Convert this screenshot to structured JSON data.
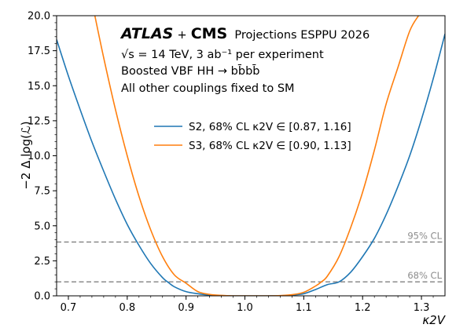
{
  "chart_data": {
    "type": "line",
    "xlabel": "κ2V",
    "ylabel": "−2 Δ log(ℒ)",
    "xlim": [
      0.68,
      1.34
    ],
    "ylim": [
      0.0,
      20.0
    ],
    "xticks": [
      "0.7",
      "0.8",
      "0.9",
      "1.0",
      "1.1",
      "1.2",
      "1.3"
    ],
    "xtick_values": [
      0.7,
      0.8,
      0.9,
      1.0,
      1.1,
      1.2,
      1.3
    ],
    "yticks": [
      "0.0",
      "2.5",
      "5.0",
      "7.5",
      "10.0",
      "12.5",
      "15.0",
      "17.5",
      "20.0"
    ],
    "ytick_values": [
      0.0,
      2.5,
      5.0,
      7.5,
      10.0,
      12.5,
      15.0,
      17.5,
      20.0
    ],
    "grid": false,
    "legend_position": "center-right",
    "annotation": {
      "atlas": "ATLAS",
      "plus": "+",
      "cms": "CMS",
      "projections": "Projections ESPPU 2026",
      "line2": "√s = 14 TeV, 3 ab⁻¹ per experiment",
      "line3": "Boosted VBF HH → bb̄bb̄",
      "line4": "All other couplings fixed to SM"
    },
    "reference_lines": [
      {
        "label": "95% CL",
        "y": 3.84
      },
      {
        "label": "68% CL",
        "y": 1.0
      }
    ],
    "series": [
      {
        "name": "S2, 68% CL κ2V ∈ [0.87, 1.16]",
        "color": "#1f77b4",
        "x": [
          0.68,
          0.7,
          0.72,
          0.74,
          0.76,
          0.78,
          0.8,
          0.82,
          0.84,
          0.86,
          0.87,
          0.88,
          0.9,
          0.92,
          0.94,
          0.96,
          0.98,
          1.0,
          1.02,
          1.04,
          1.06,
          1.08,
          1.1,
          1.12,
          1.14,
          1.16,
          1.18,
          1.2,
          1.22,
          1.24,
          1.26,
          1.28,
          1.3,
          1.32,
          1.34
        ],
        "y": [
          18.3,
          15.7,
          13.3,
          11.0,
          8.9,
          6.9,
          5.1,
          3.6,
          2.3,
          1.3,
          0.95,
          0.65,
          0.3,
          0.15,
          0.06,
          0.02,
          0.0,
          0.0,
          0.0,
          0.0,
          0.01,
          0.05,
          0.15,
          0.45,
          0.8,
          1.0,
          1.7,
          2.8,
          4.1,
          5.8,
          7.8,
          10.0,
          12.6,
          15.5,
          18.7
        ]
      },
      {
        "name": "S3, 68% CL κ2V ∈ [0.90, 1.13]",
        "color": "#ff7f0e",
        "x": [
          0.745,
          0.76,
          0.78,
          0.8,
          0.82,
          0.84,
          0.86,
          0.88,
          0.9,
          0.92,
          0.94,
          0.96,
          0.98,
          1.0,
          1.02,
          1.04,
          1.06,
          1.08,
          1.1,
          1.12,
          1.13,
          1.14,
          1.16,
          1.18,
          1.2,
          1.22,
          1.24,
          1.26,
          1.28,
          1.295
        ],
        "y": [
          20.0,
          17.0,
          13.3,
          10.0,
          7.1,
          4.7,
          2.8,
          1.5,
          0.9,
          0.3,
          0.1,
          0.03,
          0.0,
          0.0,
          0.0,
          0.0,
          0.02,
          0.08,
          0.25,
          0.7,
          1.0,
          1.4,
          2.8,
          4.9,
          7.4,
          10.4,
          13.7,
          16.3,
          18.9,
          20.0
        ]
      }
    ]
  }
}
